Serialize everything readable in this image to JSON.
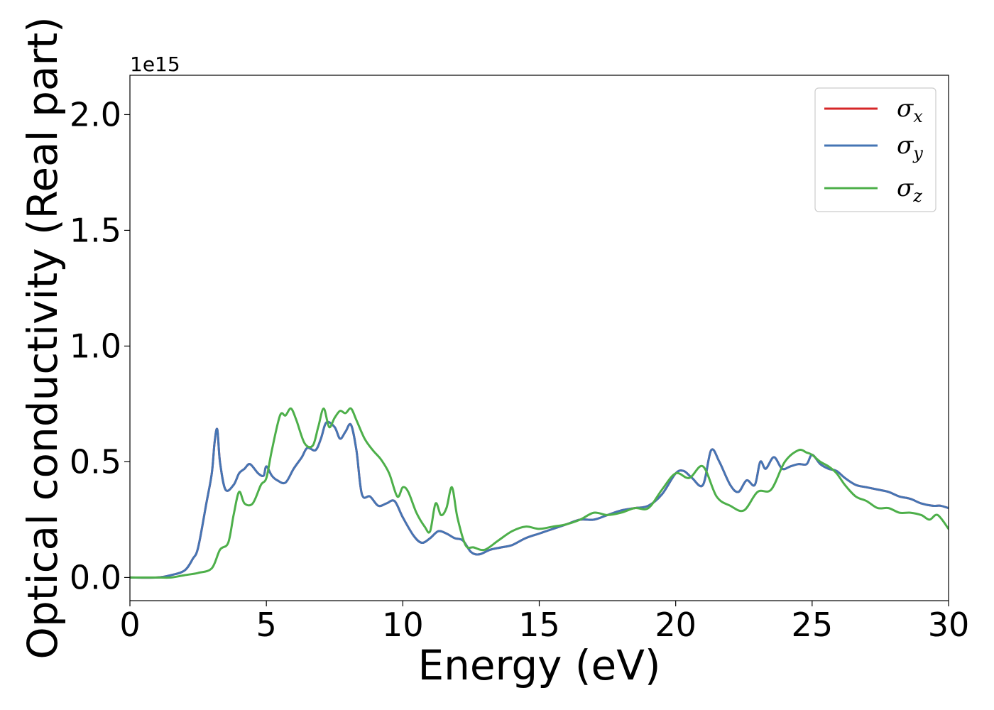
{
  "chart_data": {
    "type": "line",
    "title": "",
    "xlabel": "Energy (eV)",
    "ylabel": "Optical conductivity (Real part)",
    "y_offset_text": "1e15",
    "xlim": [
      0,
      30
    ],
    "ylim": [
      -0.1,
      2.17
    ],
    "xticks": [
      0,
      5,
      10,
      15,
      20,
      25,
      30
    ],
    "xtick_labels": [
      "0",
      "5",
      "10",
      "15",
      "20",
      "25",
      "30"
    ],
    "yticks": [
      0.0,
      0.5,
      1.0,
      1.5,
      2.0
    ],
    "ytick_labels": [
      "0.0",
      "0.5",
      "1.0",
      "1.5",
      "2.0"
    ],
    "grid": false,
    "legend_position": "top-right",
    "series": [
      {
        "name": "σx",
        "symbol": "σ",
        "subscript": "x",
        "color": "#d62728",
        "x": [
          0,
          1,
          1.5,
          2,
          2.3,
          2.5,
          2.8,
          3.0,
          3.1,
          3.2,
          3.3,
          3.5,
          3.8,
          4.0,
          4.2,
          4.4,
          4.7,
          4.9,
          5.0,
          5.2,
          5.4,
          5.7,
          6.0,
          6.3,
          6.5,
          6.8,
          7.0,
          7.2,
          7.5,
          7.7,
          7.9,
          8.1,
          8.3,
          8.5,
          8.8,
          9.1,
          9.4,
          9.7,
          10.0,
          10.4,
          10.7,
          11.0,
          11.3,
          11.6,
          11.9,
          12.2,
          12.5,
          12.8,
          13.2,
          13.6,
          14.0,
          14.5,
          15.0,
          15.5,
          16.0,
          16.5,
          17.0,
          17.5,
          18.0,
          18.5,
          19.0,
          19.5,
          20.0,
          20.3,
          20.6,
          21.0,
          21.3,
          21.6,
          22.0,
          22.3,
          22.6,
          22.9,
          23.1,
          23.3,
          23.6,
          23.9,
          24.2,
          24.5,
          24.8,
          25.0,
          25.3,
          25.6,
          25.9,
          26.2,
          26.6,
          27.0,
          27.4,
          27.8,
          28.2,
          28.6,
          29.0,
          29.4,
          29.7,
          30.0
        ],
        "y": [
          0.0,
          0.0,
          0.01,
          0.03,
          0.08,
          0.13,
          0.32,
          0.45,
          0.58,
          0.64,
          0.5,
          0.38,
          0.4,
          0.45,
          0.47,
          0.49,
          0.45,
          0.44,
          0.48,
          0.44,
          0.42,
          0.41,
          0.47,
          0.52,
          0.56,
          0.55,
          0.6,
          0.67,
          0.65,
          0.6,
          0.63,
          0.66,
          0.55,
          0.36,
          0.35,
          0.31,
          0.32,
          0.33,
          0.26,
          0.18,
          0.15,
          0.17,
          0.2,
          0.19,
          0.17,
          0.16,
          0.11,
          0.1,
          0.12,
          0.13,
          0.14,
          0.17,
          0.19,
          0.21,
          0.23,
          0.25,
          0.25,
          0.27,
          0.29,
          0.3,
          0.31,
          0.36,
          0.45,
          0.46,
          0.43,
          0.4,
          0.55,
          0.5,
          0.4,
          0.37,
          0.42,
          0.4,
          0.5,
          0.47,
          0.52,
          0.47,
          0.48,
          0.49,
          0.49,
          0.53,
          0.49,
          0.47,
          0.46,
          0.43,
          0.4,
          0.39,
          0.38,
          0.37,
          0.35,
          0.34,
          0.32,
          0.31,
          0.31,
          0.3
        ]
      },
      {
        "name": "σy",
        "symbol": "σ",
        "subscript": "y",
        "color": "#4575b4",
        "x": [
          0,
          1,
          1.5,
          2,
          2.3,
          2.5,
          2.8,
          3.0,
          3.1,
          3.2,
          3.3,
          3.5,
          3.8,
          4.0,
          4.2,
          4.4,
          4.7,
          4.9,
          5.0,
          5.2,
          5.4,
          5.7,
          6.0,
          6.3,
          6.5,
          6.8,
          7.0,
          7.2,
          7.5,
          7.7,
          7.9,
          8.1,
          8.3,
          8.5,
          8.8,
          9.1,
          9.4,
          9.7,
          10.0,
          10.4,
          10.7,
          11.0,
          11.3,
          11.6,
          11.9,
          12.2,
          12.5,
          12.8,
          13.2,
          13.6,
          14.0,
          14.5,
          15.0,
          15.5,
          16.0,
          16.5,
          17.0,
          17.5,
          18.0,
          18.5,
          19.0,
          19.5,
          20.0,
          20.3,
          20.6,
          21.0,
          21.3,
          21.6,
          22.0,
          22.3,
          22.6,
          22.9,
          23.1,
          23.3,
          23.6,
          23.9,
          24.2,
          24.5,
          24.8,
          25.0,
          25.3,
          25.6,
          25.9,
          26.2,
          26.6,
          27.0,
          27.4,
          27.8,
          28.2,
          28.6,
          29.0,
          29.4,
          29.7,
          30.0
        ],
        "y": [
          0.0,
          0.0,
          0.01,
          0.03,
          0.08,
          0.13,
          0.32,
          0.45,
          0.58,
          0.64,
          0.5,
          0.38,
          0.4,
          0.45,
          0.47,
          0.49,
          0.45,
          0.44,
          0.48,
          0.44,
          0.42,
          0.41,
          0.47,
          0.52,
          0.56,
          0.55,
          0.6,
          0.67,
          0.65,
          0.6,
          0.63,
          0.66,
          0.55,
          0.36,
          0.35,
          0.31,
          0.32,
          0.33,
          0.26,
          0.18,
          0.15,
          0.17,
          0.2,
          0.19,
          0.17,
          0.16,
          0.11,
          0.1,
          0.12,
          0.13,
          0.14,
          0.17,
          0.19,
          0.21,
          0.23,
          0.25,
          0.25,
          0.27,
          0.29,
          0.3,
          0.31,
          0.36,
          0.45,
          0.46,
          0.43,
          0.4,
          0.55,
          0.5,
          0.4,
          0.37,
          0.42,
          0.4,
          0.5,
          0.47,
          0.52,
          0.47,
          0.48,
          0.49,
          0.49,
          0.53,
          0.49,
          0.47,
          0.46,
          0.43,
          0.4,
          0.39,
          0.38,
          0.37,
          0.35,
          0.34,
          0.32,
          0.31,
          0.31,
          0.3
        ]
      },
      {
        "name": "σz",
        "symbol": "σ",
        "subscript": "z",
        "color": "#4daf4a",
        "x": [
          0,
          1,
          1.5,
          2,
          2.5,
          3.0,
          3.3,
          3.6,
          3.8,
          4.0,
          4.2,
          4.5,
          4.8,
          5.0,
          5.2,
          5.5,
          5.7,
          5.9,
          6.1,
          6.4,
          6.7,
          6.9,
          7.1,
          7.3,
          7.5,
          7.7,
          7.9,
          8.1,
          8.3,
          8.6,
          8.9,
          9.2,
          9.5,
          9.8,
          10.0,
          10.2,
          10.5,
          10.8,
          11.0,
          11.2,
          11.4,
          11.6,
          11.8,
          12.0,
          12.3,
          12.6,
          13.0,
          13.5,
          14.0,
          14.5,
          15.0,
          15.5,
          16.0,
          16.5,
          17.0,
          17.5,
          18.0,
          18.5,
          19.0,
          19.5,
          20.0,
          20.5,
          21.0,
          21.5,
          22.0,
          22.5,
          23.0,
          23.5,
          24.0,
          24.5,
          24.8,
          25.0,
          25.3,
          25.6,
          25.9,
          26.2,
          26.6,
          27.0,
          27.4,
          27.8,
          28.2,
          28.6,
          29.0,
          29.3,
          29.6,
          30.0
        ],
        "y": [
          0.0,
          0.0,
          0.0,
          0.01,
          0.02,
          0.04,
          0.12,
          0.15,
          0.27,
          0.37,
          0.32,
          0.32,
          0.4,
          0.43,
          0.55,
          0.7,
          0.7,
          0.73,
          0.68,
          0.58,
          0.57,
          0.65,
          0.73,
          0.65,
          0.69,
          0.72,
          0.71,
          0.73,
          0.68,
          0.6,
          0.55,
          0.51,
          0.45,
          0.35,
          0.39,
          0.37,
          0.28,
          0.22,
          0.2,
          0.32,
          0.27,
          0.3,
          0.39,
          0.26,
          0.14,
          0.13,
          0.12,
          0.16,
          0.2,
          0.22,
          0.21,
          0.22,
          0.23,
          0.25,
          0.28,
          0.27,
          0.28,
          0.3,
          0.3,
          0.38,
          0.45,
          0.43,
          0.48,
          0.35,
          0.31,
          0.29,
          0.37,
          0.38,
          0.5,
          0.55,
          0.54,
          0.53,
          0.5,
          0.48,
          0.45,
          0.4,
          0.35,
          0.33,
          0.3,
          0.3,
          0.28,
          0.28,
          0.27,
          0.25,
          0.27,
          0.21
        ]
      }
    ]
  }
}
